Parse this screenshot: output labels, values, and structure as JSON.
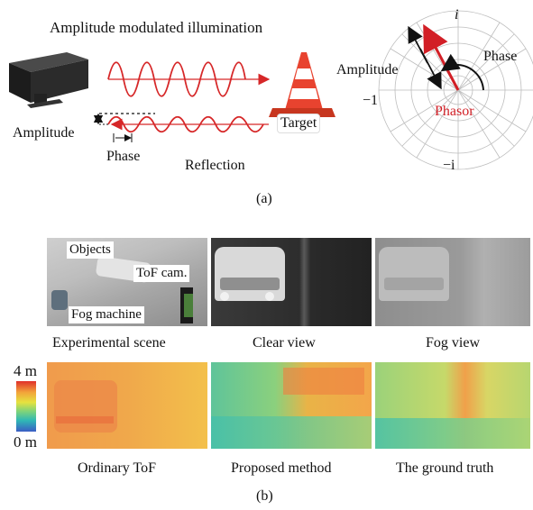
{
  "part_a": {
    "illumination_label": "Amplitude modulated illumination",
    "target_label": "Target",
    "amplitude_label_left": "Amplitude",
    "phase_label_left": "Phase",
    "reflection_label": "Reflection",
    "phasor_plot": {
      "axis_top": "i",
      "axis_bottom": "−i",
      "axis_left": "−1",
      "amplitude_label": "Amplitude",
      "phase_label": "Phase",
      "phasor_label": "Phasor"
    },
    "caption": "(a)"
  },
  "part_b": {
    "scene_tags": {
      "objects": "Objects",
      "tof_cam": "ToF cam.",
      "fog_machine": "Fog machine"
    },
    "top_captions": [
      "Experimental scene",
      "Clear view",
      "Fog view"
    ],
    "colorbar": {
      "max": "4 m",
      "min": "0 m"
    },
    "bottom_captions": [
      "Ordinary ToF",
      "Proposed method",
      "The ground truth"
    ],
    "caption": "(b)"
  },
  "colors": {
    "wave": "#d62728",
    "phasor": "#d21f26",
    "cone": "#e8432f"
  }
}
